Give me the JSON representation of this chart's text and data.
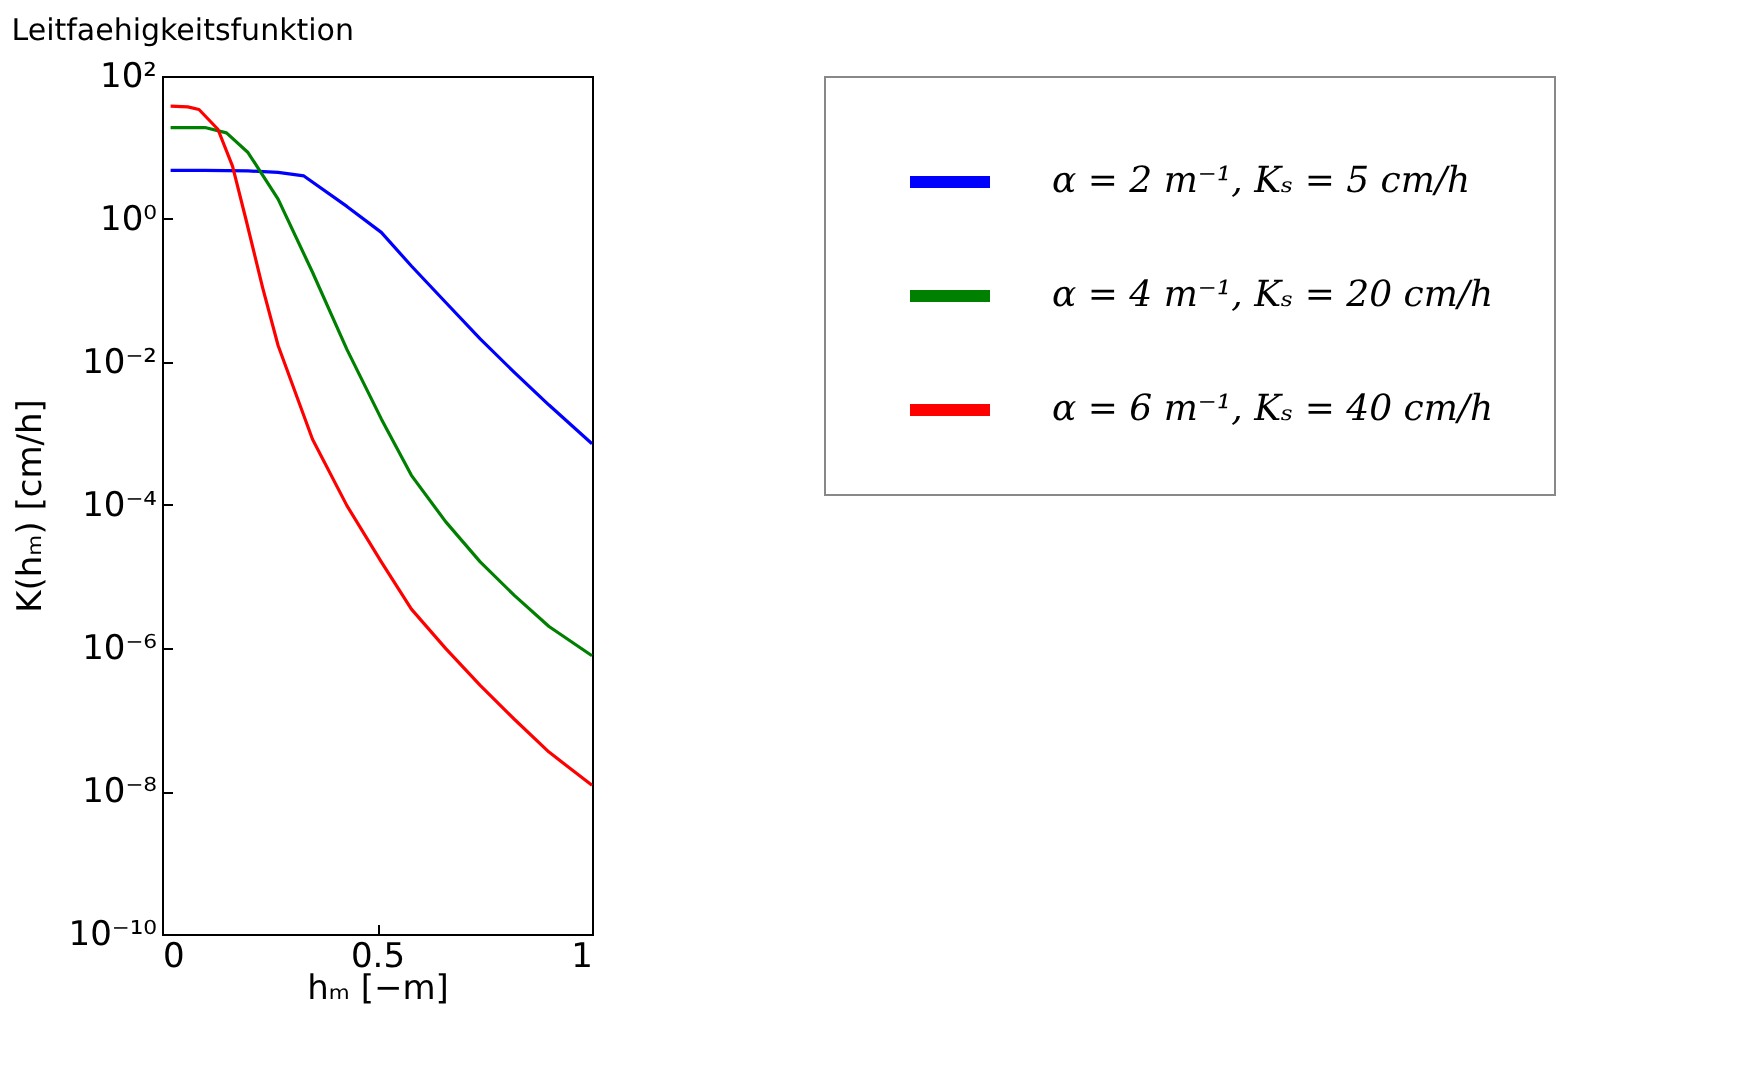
{
  "chart_data": {
    "type": "line",
    "title": "Leitfaehigkeitsfunktion",
    "xlabel": "hₘ [−m]",
    "ylabel": "K(hₘ) [cm/h]",
    "log": "y",
    "xlim": [
      0,
      1
    ],
    "xticks": [
      0,
      0.5,
      1
    ],
    "ylim": [
      1e-10,
      100
    ],
    "yticks": [
      {
        "value": 1e-10,
        "label": "10⁻¹⁰"
      },
      {
        "value": 1e-08,
        "label": "10⁻⁸"
      },
      {
        "value": 1e-06,
        "label": "10⁻⁶"
      },
      {
        "value": 0.0001,
        "label": "10⁻⁴"
      },
      {
        "value": 0.01,
        "label": "10⁻²"
      },
      {
        "value": 1,
        "label": "10⁰"
      },
      {
        "value": 100,
        "label": "10²"
      }
    ],
    "grid": false,
    "legend": "right",
    "marker": "none",
    "line_style": "solid",
    "series": [
      {
        "name": "α = 2 m⁻¹, Kₛ = 5 cm/h",
        "color": "#0000ff",
        "x": [
          0.02,
          0.1,
          0.2,
          0.27,
          0.33,
          0.43,
          0.51,
          0.58,
          0.66,
          0.74,
          0.82,
          0.9,
          1
        ],
        "values": [
          4.8,
          4.8,
          4.7,
          4.5,
          4.0,
          1.5,
          0.65,
          0.22,
          0.068,
          0.021,
          0.0071,
          0.0025,
          0.00072
        ]
      },
      {
        "name": "α = 4 m⁻¹, Kₛ = 20 cm/h",
        "color": "#008000",
        "x": [
          0.02,
          0.1,
          0.15,
          0.2,
          0.27,
          0.35,
          0.43,
          0.51,
          0.58,
          0.66,
          0.74,
          0.82,
          0.9,
          1
        ],
        "values": [
          19,
          19,
          16,
          8.5,
          1.9,
          0.18,
          0.015,
          0.0016,
          0.00026,
          5.8e-05,
          1.6e-05,
          5.4e-06,
          2e-06,
          7.8e-07
        ]
      },
      {
        "name": "α = 6 m⁻¹, Kₛ = 40 cm/h",
        "color": "#ff0000",
        "x": [
          0.02,
          0.06,
          0.086,
          0.13,
          0.164,
          0.195,
          0.234,
          0.27,
          0.35,
          0.43,
          0.51,
          0.58,
          0.66,
          0.74,
          0.82,
          0.9,
          1
        ],
        "values": [
          38,
          37,
          34,
          18,
          5.5,
          1.0,
          0.11,
          0.017,
          0.00083,
          9.8e-05,
          1.6e-05,
          3.5e-06,
          9.8e-07,
          3e-07,
          1e-07,
          3.5e-08,
          1.2e-08
        ]
      }
    ]
  }
}
